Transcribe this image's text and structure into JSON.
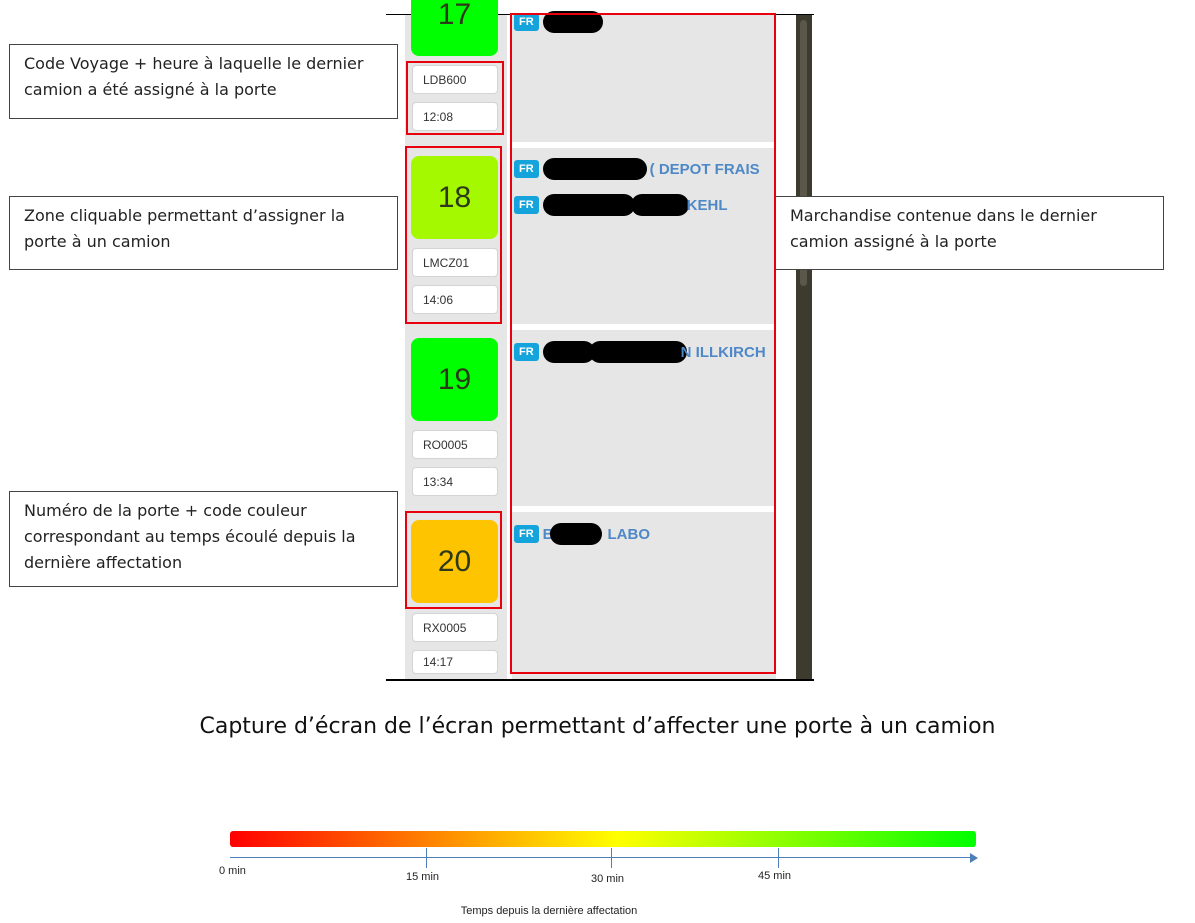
{
  "doors": [
    {
      "number": "17",
      "code": "LDB600",
      "time": "12:08",
      "color": "#00ff00"
    },
    {
      "number": "18",
      "code": "LMCZ01",
      "time": "14:06",
      "color": "#a4f800"
    },
    {
      "number": "19",
      "code": "RO0005",
      "time": "13:34",
      "color": "#00ff00"
    },
    {
      "number": "20",
      "code": "RX0005",
      "time": "14:17",
      "color": "#ffc400"
    }
  ],
  "cargo": {
    "door17": [
      {
        "badge": "FR",
        "text": ""
      }
    ],
    "door18": [
      {
        "badge": "FR",
        "prefix": "",
        "text": "( DEPOT FRAIS"
      },
      {
        "badge": "FR",
        "prefix": "",
        "text": "KEHL"
      }
    ],
    "door19": [
      {
        "badge": "FR",
        "prefix": "",
        "text": "N ILLKIRCH"
      }
    ],
    "door20": [
      {
        "badge": "FR",
        "prefix": "B",
        "text": "LABO"
      }
    ]
  },
  "callouts": {
    "code_voyage": "Code Voyage + heure à laquelle le dernier camion a été assigné à la porte",
    "zone_cliquable": "Zone cliquable permettant d’assigner la porte à un camion",
    "numero_porte": "Numéro de la porte + code couleur correspondant au temps écoulé depuis la dernière affectation",
    "marchandise": "Marchandise contenue dans le dernier camion assigné à la porte"
  },
  "caption": "Capture d’écran de l’écran permettant d’affecter une porte à un camion",
  "legend": {
    "title": "Temps depuis la dernière affectation",
    "ticks": [
      "0 min",
      "15 min",
      "30 min",
      "45 min"
    ],
    "gradient_colors": [
      "#ff0000",
      "#ff7a00",
      "#ffff00",
      "#88ff00",
      "#00ff00"
    ]
  }
}
